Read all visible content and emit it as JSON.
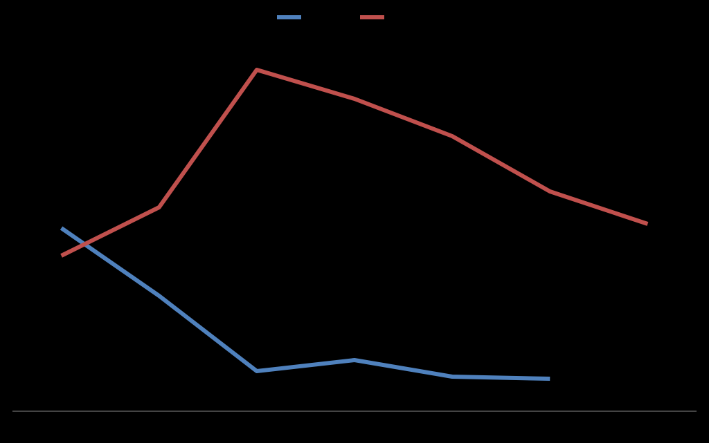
{
  "chart_data": {
    "type": "line",
    "categories": [
      null,
      null,
      null,
      null,
      null,
      null,
      null
    ],
    "series": [
      {
        "color": "#4f81bd",
        "values": [
          53,
          33.4,
          11.6,
          14.8,
          10,
          9.4,
          null
        ]
      },
      {
        "color": "#c0504d",
        "values": [
          45,
          59,
          98.8,
          90.4,
          79.6,
          63.6,
          54.2
        ]
      }
    ],
    "ylim": [
      0,
      100
    ]
  }
}
